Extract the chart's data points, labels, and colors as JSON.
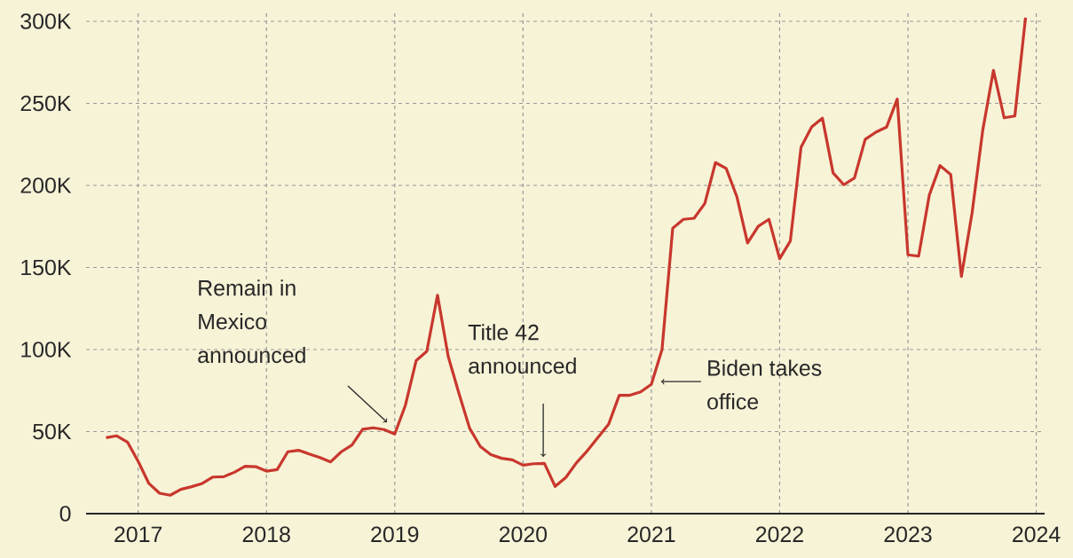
{
  "chart_data": {
    "type": "line",
    "color": "#c8372d",
    "grid": true,
    "x": [
      "2016-10",
      "2016-11",
      "2016-12",
      "2017-01",
      "2017-02",
      "2017-03",
      "2017-04",
      "2017-05",
      "2017-06",
      "2017-07",
      "2017-08",
      "2017-09",
      "2017-10",
      "2017-11",
      "2017-12",
      "2018-01",
      "2018-02",
      "2018-03",
      "2018-04",
      "2018-05",
      "2018-06",
      "2018-07",
      "2018-08",
      "2018-09",
      "2018-10",
      "2018-11",
      "2018-12",
      "2019-01",
      "2019-02",
      "2019-03",
      "2019-04",
      "2019-05",
      "2019-06",
      "2019-07",
      "2019-08",
      "2019-09",
      "2019-10",
      "2019-11",
      "2019-12",
      "2020-01",
      "2020-02",
      "2020-03",
      "2020-04",
      "2020-05",
      "2020-06",
      "2020-07",
      "2020-08",
      "2020-09",
      "2020-10",
      "2020-11",
      "2020-12",
      "2021-01",
      "2021-02",
      "2021-03",
      "2021-04",
      "2021-05",
      "2021-06",
      "2021-07",
      "2021-08",
      "2021-09",
      "2021-10",
      "2021-11",
      "2021-12",
      "2022-01",
      "2022-02",
      "2022-03",
      "2022-04",
      "2022-05",
      "2022-06",
      "2022-07",
      "2022-08",
      "2022-09",
      "2022-10",
      "2022-11",
      "2022-12",
      "2023-01",
      "2023-02",
      "2023-03",
      "2023-04",
      "2023-05",
      "2023-06",
      "2023-07",
      "2023-08",
      "2023-09",
      "2023-10",
      "2023-11",
      "2023-12"
    ],
    "values": [
      46300,
      47400,
      43600,
      31900,
      18400,
      12400,
      11200,
      14800,
      16400,
      18400,
      22300,
      22500,
      25200,
      28800,
      28600,
      25900,
      26800,
      37700,
      38600,
      36400,
      34200,
      31500,
      37700,
      41800,
      51400,
      52300,
      51200,
      48500,
      66100,
      93200,
      98900,
      133100,
      95800,
      73400,
      52100,
      40900,
      35900,
      33700,
      32800,
      29500,
      30400,
      30600,
      16600,
      22000,
      31000,
      38200,
      46300,
      54400,
      72100,
      72100,
      74200,
      78800,
      100000,
      173900,
      179300,
      180000,
      189000,
      213900,
      210300,
      193100,
      164900,
      175100,
      179300,
      155300,
      166100,
      223200,
      235700,
      241000,
      207600,
      200400,
      204500,
      228000,
      232400,
      235500,
      252600,
      157700,
      156900,
      194100,
      212100,
      206600,
      144500,
      183200,
      233700,
      270100,
      241200,
      242300,
      302200
    ],
    "xlim": [
      "2016-08-05",
      "2024-01-25"
    ],
    "xticks": [
      "2017",
      "2018",
      "2019",
      "2020",
      "2021",
      "2022",
      "2023",
      "2024"
    ],
    "ylim": [
      0,
      307000
    ],
    "yticks": [
      0,
      {
        "value": 50000,
        "label": "50K"
      },
      {
        "value": 100000,
        "label": "100K"
      },
      {
        "value": 150000,
        "label": "150K"
      },
      {
        "value": 200000,
        "label": "200K"
      },
      {
        "value": 250000,
        "label": "250K"
      },
      {
        "value": 300000,
        "label": "300K"
      }
    ],
    "annotations": [
      "Remain in Mexico announced",
      "Title 42 announced",
      {
        "text": "Biden takes office",
        "x": "2021-01",
        "y": 78800
      }
    ]
  }
}
